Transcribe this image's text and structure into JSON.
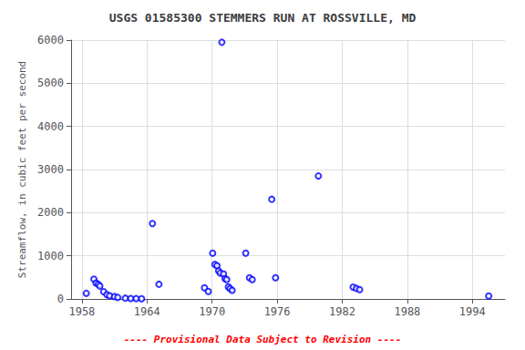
{
  "chart_data": {
    "type": "scatter",
    "title": "USGS 01585300 STEMMERS RUN AT ROSSVILLE, MD",
    "ylabel": "Streamflow, in cubic feet per second",
    "annotations": [
      "---- Provisional Data Subject to Revision ----"
    ],
    "x": [
      1958.4,
      1959.1,
      1959.3,
      1959.5,
      1959.65,
      1960.0,
      1960.3,
      1960.55,
      1961.0,
      1961.3,
      1962.0,
      1962.5,
      1963.0,
      1963.5,
      1964.5,
      1965.1,
      1969.3,
      1969.65,
      1970.05,
      1970.25,
      1970.45,
      1970.6,
      1970.75,
      1970.9,
      1971.05,
      1971.2,
      1971.35,
      1971.5,
      1971.65,
      1971.85,
      1973.1,
      1973.45,
      1973.7,
      1975.5,
      1975.85,
      1979.8,
      1983.0,
      1983.3,
      1983.6,
      1995.5
    ],
    "values": [
      130,
      460,
      370,
      340,
      300,
      170,
      100,
      75,
      55,
      35,
      18,
      10,
      8,
      5,
      1750,
      340,
      260,
      175,
      1060,
      800,
      770,
      650,
      600,
      5950,
      580,
      470,
      450,
      280,
      240,
      200,
      1060,
      490,
      450,
      2310,
      490,
      2850,
      275,
      245,
      215,
      70
    ],
    "color": "#0000ff",
    "marker": "circle",
    "xlim": [
      1957,
      1997
    ],
    "xticks": [
      1958,
      1964,
      1970,
      1976,
      1982,
      1988,
      1994
    ],
    "ylim": [
      0,
      6000
    ],
    "yticks": [
      0,
      1000,
      2000,
      3000,
      4000,
      5000,
      6000
    ],
    "grid": true
  }
}
